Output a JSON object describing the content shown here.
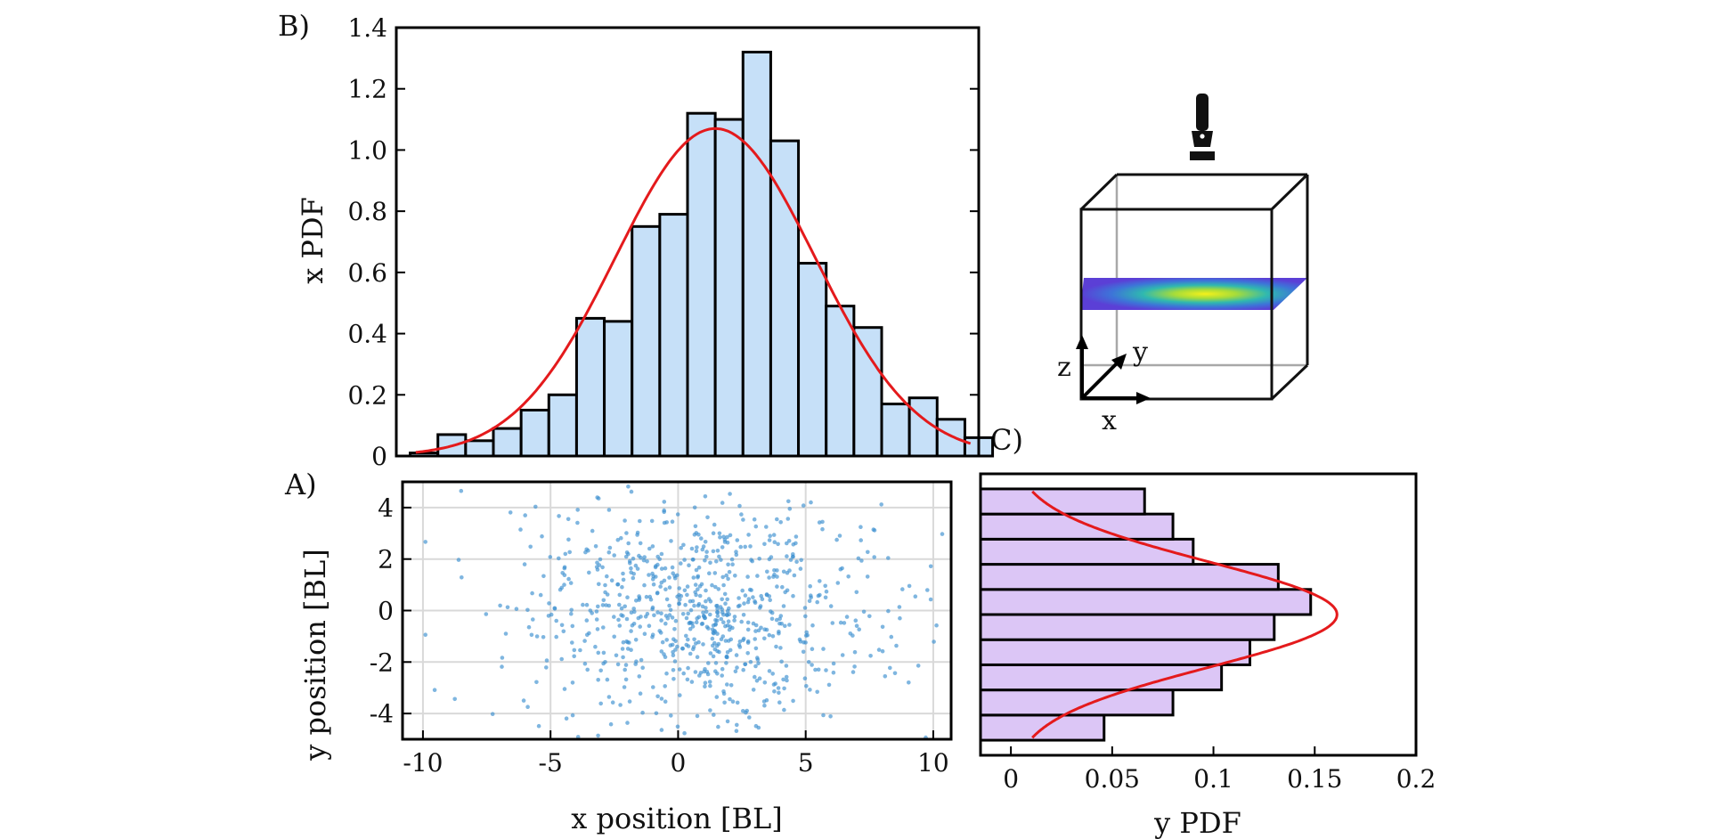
{
  "panels": {
    "a": "A)",
    "b": "B)",
    "c": "C)"
  },
  "schematic": {
    "axis_x": "x",
    "axis_y": "y",
    "axis_z": "z",
    "light_icon": "flashlight-icon"
  },
  "colors": {
    "hist_x_fill": "#c6e0f8",
    "hist_y_fill": "#dcc6f6",
    "fit_line": "#e41a1c",
    "scatter_point": "#3b8fd0",
    "grid": "#d9d9d9",
    "box_edge": "#000000"
  },
  "chart_data": [
    {
      "panel": "B)",
      "type": "bar",
      "ylabel": "x PDF",
      "xlim": [
        -10.5,
        10.5
      ],
      "ylim": [
        0,
        1.4
      ],
      "yticks": [
        "0",
        "0.2",
        "0.4",
        "0.6",
        "0.8",
        "1.0",
        "1.2",
        "1.4"
      ],
      "bin_edges": [
        -10,
        -9,
        -8,
        -7,
        -6,
        -5,
        -4,
        -3,
        -2,
        -1,
        0,
        1,
        2,
        3,
        4,
        5,
        6,
        7,
        8,
        9,
        10,
        11
      ],
      "values": [
        0.01,
        0.07,
        0.05,
        0.09,
        0.15,
        0.2,
        0.45,
        0.44,
        0.75,
        0.79,
        1.12,
        1.1,
        1.32,
        1.03,
        0.63,
        0.49,
        0.42,
        0.17,
        0.19,
        0.12,
        0.06
      ],
      "fit": {
        "kind": "gaussian",
        "peak": 1.07,
        "mean": 1.0,
        "sd": 3.6,
        "x_range": [
          -9.8,
          10.2
        ]
      }
    },
    {
      "panel": "A)",
      "type": "scatter",
      "xlabel": "x position [BL]",
      "ylabel": "y position [BL]",
      "xlim": [
        -10.8,
        10.7
      ],
      "ylim": [
        -5,
        5
      ],
      "xticks": [
        "-10",
        "-5",
        "0",
        "5",
        "10"
      ],
      "yticks": [
        "-4",
        "-2",
        "0",
        "2",
        "4"
      ],
      "grid": true,
      "n_points": 800
    },
    {
      "panel": "C)",
      "type": "bar",
      "orientation": "horizontal",
      "xlabel": "y PDF",
      "xlim": [
        -0.015,
        0.2
      ],
      "ylim": [
        -5.6,
        5.6
      ],
      "xticks": [
        "0",
        "0.05",
        "0.1",
        "0.15",
        "0.2"
      ],
      "bin_edges": [
        -5,
        -4,
        -3,
        -2,
        -1,
        0,
        1,
        2,
        3,
        4,
        5
      ],
      "values": [
        0.046,
        0.08,
        0.104,
        0.118,
        0.13,
        0.148,
        0.132,
        0.09,
        0.08,
        0.066
      ],
      "fit": {
        "kind": "gaussian",
        "peak": 0.161,
        "mean": 0.0,
        "sd": 2.1,
        "y_range": [
          -4.9,
          4.9
        ]
      }
    }
  ]
}
